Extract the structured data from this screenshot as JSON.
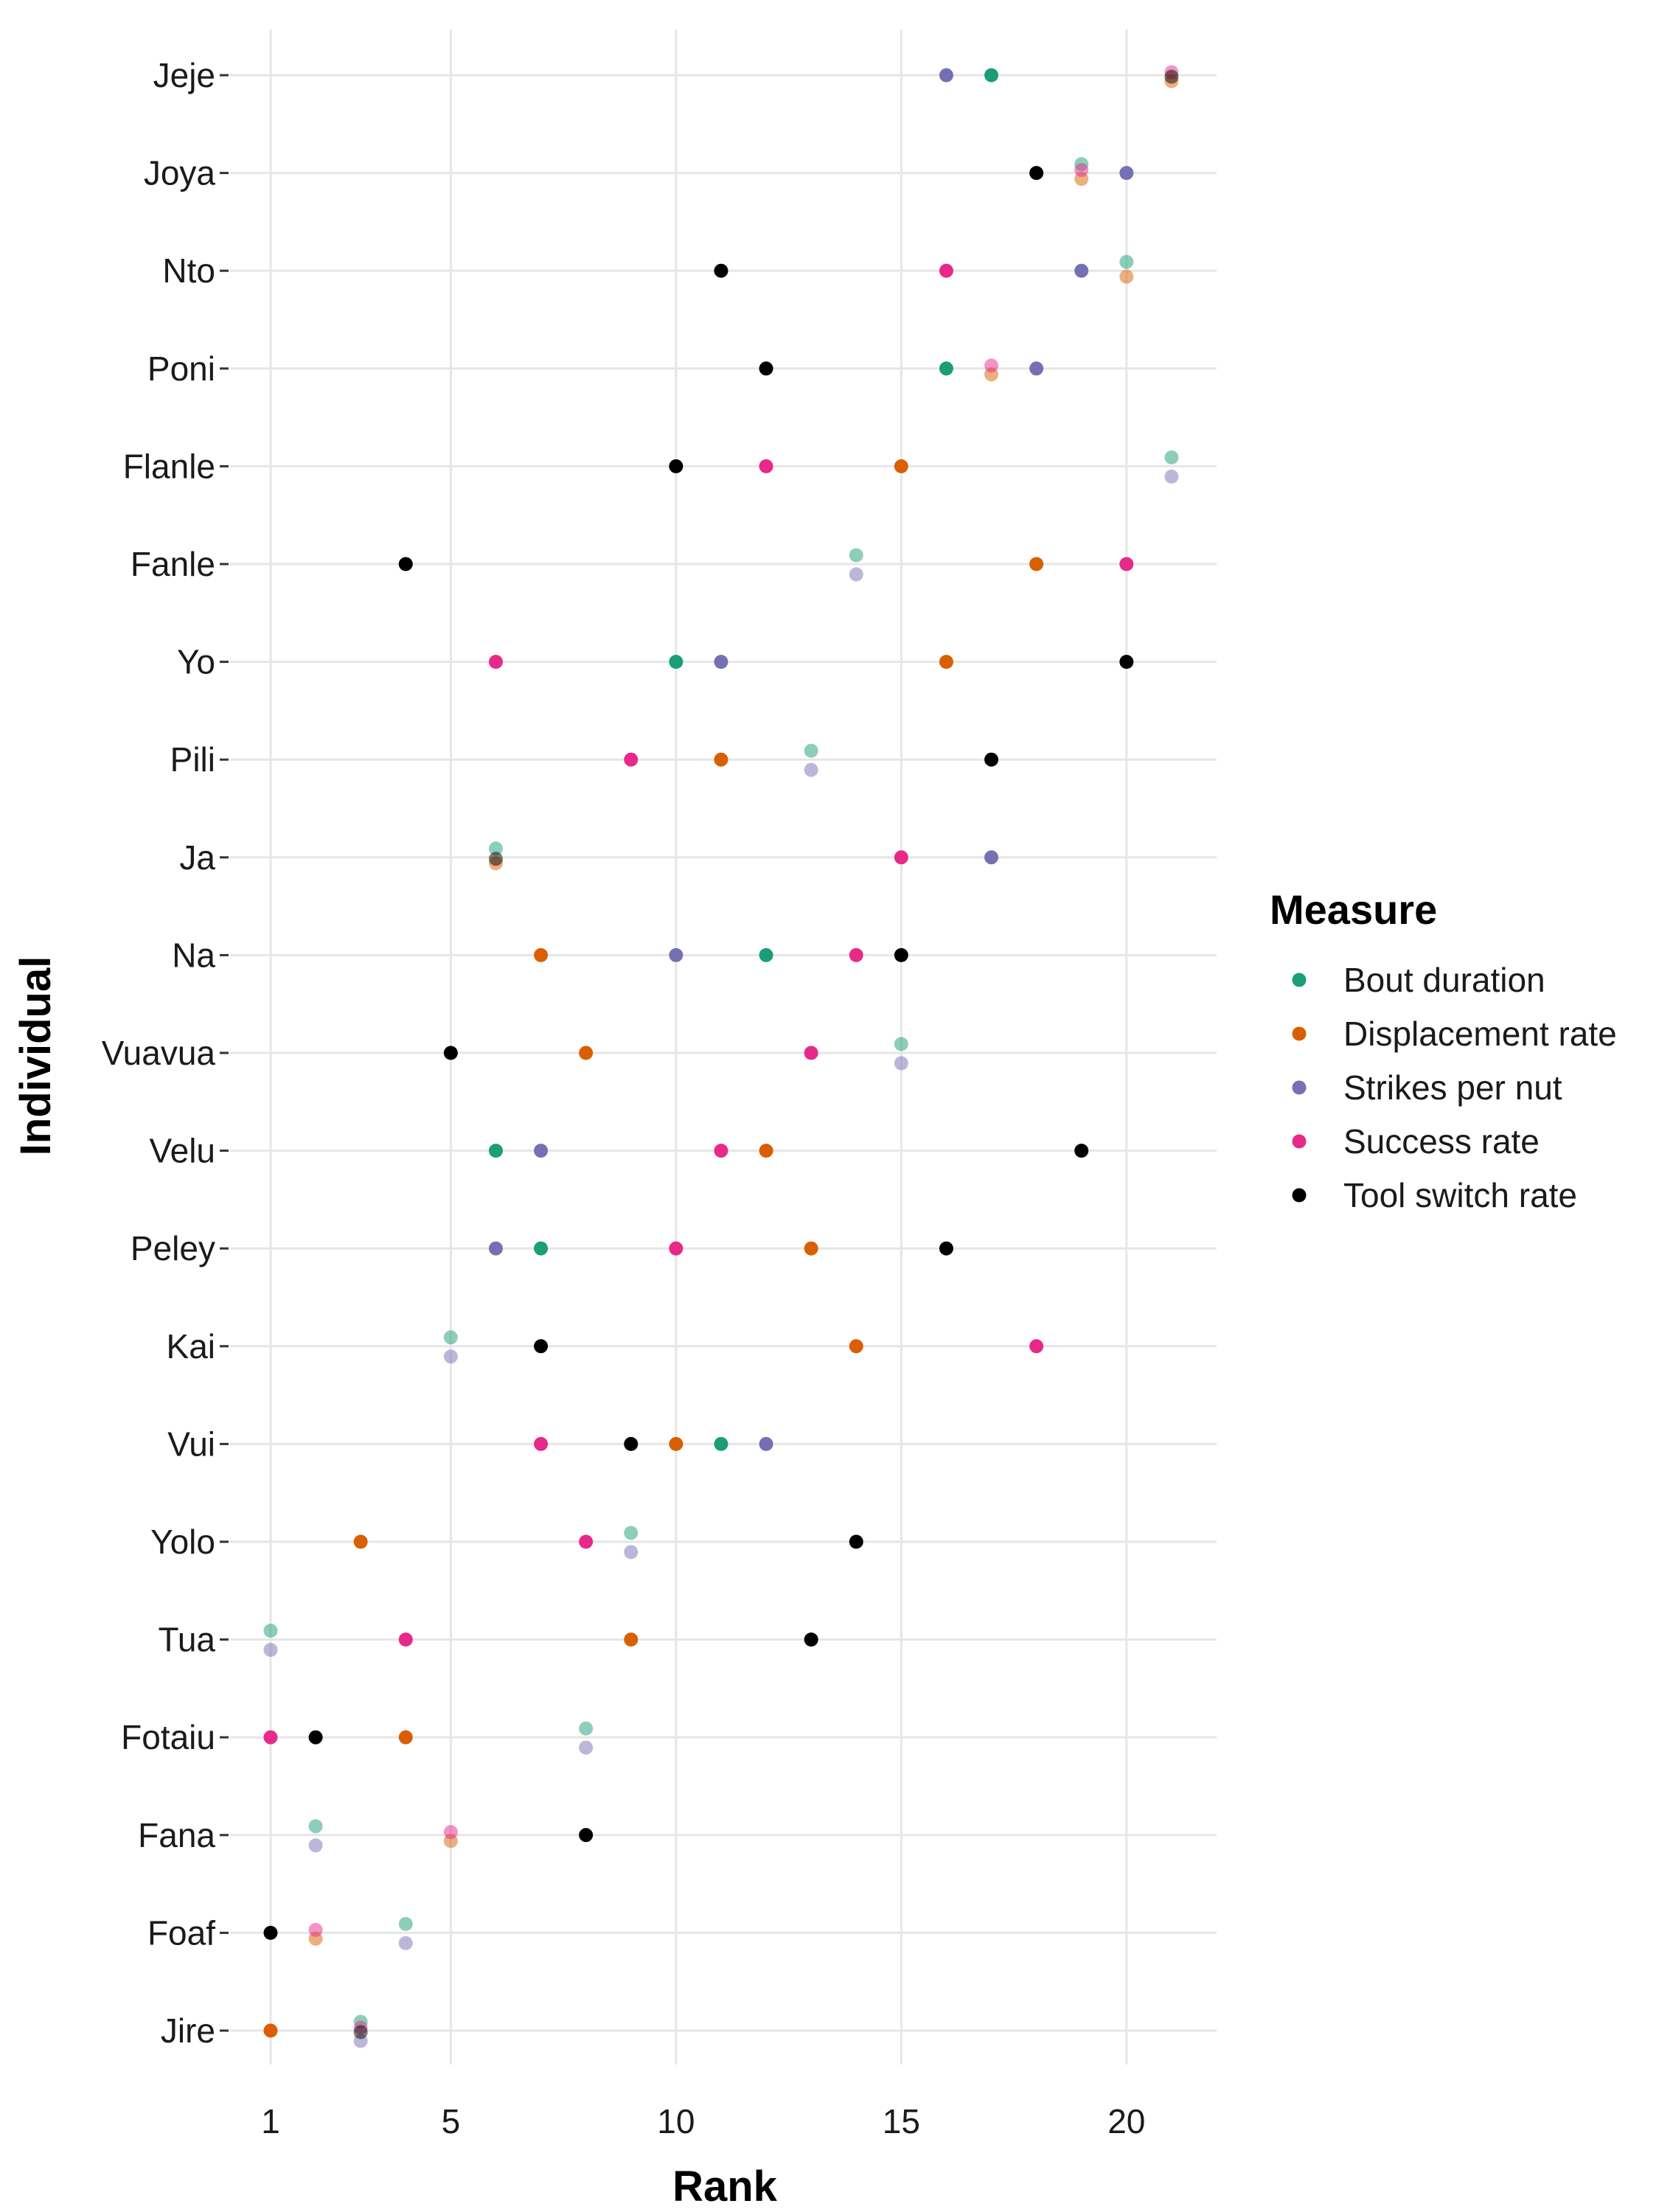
{
  "chart_data": {
    "type": "scatter",
    "title": "",
    "xlabel": "Rank",
    "ylabel": "Individual",
    "xlim": [
      0.1,
      22.0
    ],
    "x_ticks": [
      1,
      5,
      10,
      15,
      20
    ],
    "grid": true,
    "legend": {
      "title": "Measure",
      "placement": "right"
    },
    "categories": [
      "Jeje",
      "Joya",
      "Nto",
      "Poni",
      "Flanle",
      "Fanle",
      "Yo",
      "Pili",
      "Ja",
      "Na",
      "Vuavua",
      "Velu",
      "Peley",
      "Kai",
      "Vui",
      "Yolo",
      "Tua",
      "Fotaiu",
      "Fana",
      "Foaf",
      "Jire"
    ],
    "series": [
      {
        "name": "Bout duration",
        "color": "#1b9e77",
        "points": [
          {
            "individual": "Jeje",
            "rank": 17,
            "overlap": false
          },
          {
            "individual": "Joya",
            "rank": 19,
            "overlap": true
          },
          {
            "individual": "Nto",
            "rank": 20,
            "overlap": true
          },
          {
            "individual": "Poni",
            "rank": 16,
            "overlap": false
          },
          {
            "individual": "Flanle",
            "rank": 21,
            "overlap": true
          },
          {
            "individual": "Fanle",
            "rank": 14,
            "overlap": true
          },
          {
            "individual": "Yo",
            "rank": 10,
            "overlap": false
          },
          {
            "individual": "Pili",
            "rank": 13,
            "overlap": true
          },
          {
            "individual": "Ja",
            "rank": 6,
            "overlap": true
          },
          {
            "individual": "Na",
            "rank": 12,
            "overlap": false
          },
          {
            "individual": "Vuavua",
            "rank": 15,
            "overlap": true
          },
          {
            "individual": "Velu",
            "rank": 6,
            "overlap": false
          },
          {
            "individual": "Peley",
            "rank": 7,
            "overlap": false
          },
          {
            "individual": "Kai",
            "rank": 5,
            "overlap": true
          },
          {
            "individual": "Vui",
            "rank": 11,
            "overlap": false
          },
          {
            "individual": "Yolo",
            "rank": 9,
            "overlap": true
          },
          {
            "individual": "Tua",
            "rank": 1,
            "overlap": true
          },
          {
            "individual": "Fotaiu",
            "rank": 8,
            "overlap": true
          },
          {
            "individual": "Fana",
            "rank": 2,
            "overlap": true
          },
          {
            "individual": "Foaf",
            "rank": 4,
            "overlap": true
          },
          {
            "individual": "Jire",
            "rank": 3,
            "overlap": true
          }
        ]
      },
      {
        "name": "Displacement rate",
        "color": "#d95f02",
        "points": [
          {
            "individual": "Jeje",
            "rank": 21,
            "overlap": true
          },
          {
            "individual": "Joya",
            "rank": 19,
            "overlap": true
          },
          {
            "individual": "Nto",
            "rank": 20,
            "overlap": true
          },
          {
            "individual": "Poni",
            "rank": 17,
            "overlap": true
          },
          {
            "individual": "Flanle",
            "rank": 15,
            "overlap": false
          },
          {
            "individual": "Fanle",
            "rank": 18,
            "overlap": false
          },
          {
            "individual": "Yo",
            "rank": 16,
            "overlap": false
          },
          {
            "individual": "Pili",
            "rank": 11,
            "overlap": false
          },
          {
            "individual": "Ja",
            "rank": 6,
            "overlap": true
          },
          {
            "individual": "Na",
            "rank": 7,
            "overlap": false
          },
          {
            "individual": "Vuavua",
            "rank": 8,
            "overlap": false
          },
          {
            "individual": "Velu",
            "rank": 12,
            "overlap": false
          },
          {
            "individual": "Peley",
            "rank": 13,
            "overlap": false
          },
          {
            "individual": "Kai",
            "rank": 14,
            "overlap": false
          },
          {
            "individual": "Vui",
            "rank": 10,
            "overlap": false
          },
          {
            "individual": "Yolo",
            "rank": 3,
            "overlap": false
          },
          {
            "individual": "Tua",
            "rank": 9,
            "overlap": false
          },
          {
            "individual": "Fotaiu",
            "rank": 4,
            "overlap": false
          },
          {
            "individual": "Fana",
            "rank": 5,
            "overlap": true
          },
          {
            "individual": "Foaf",
            "rank": 2,
            "overlap": true
          },
          {
            "individual": "Jire",
            "rank": 1,
            "overlap": false
          }
        ]
      },
      {
        "name": "Strikes per nut",
        "color": "#7570b3",
        "points": [
          {
            "individual": "Jeje",
            "rank": 16,
            "overlap": false
          },
          {
            "individual": "Joya",
            "rank": 20,
            "overlap": false
          },
          {
            "individual": "Nto",
            "rank": 19,
            "overlap": false
          },
          {
            "individual": "Poni",
            "rank": 18,
            "overlap": false
          },
          {
            "individual": "Flanle",
            "rank": 21,
            "overlap": true
          },
          {
            "individual": "Fanle",
            "rank": 14,
            "overlap": true
          },
          {
            "individual": "Yo",
            "rank": 11,
            "overlap": false
          },
          {
            "individual": "Pili",
            "rank": 13,
            "overlap": true
          },
          {
            "individual": "Ja",
            "rank": 17,
            "overlap": false
          },
          {
            "individual": "Na",
            "rank": 10,
            "overlap": false
          },
          {
            "individual": "Vuavua",
            "rank": 15,
            "overlap": true
          },
          {
            "individual": "Velu",
            "rank": 7,
            "overlap": false
          },
          {
            "individual": "Peley",
            "rank": 6,
            "overlap": false
          },
          {
            "individual": "Kai",
            "rank": 5,
            "overlap": true
          },
          {
            "individual": "Vui",
            "rank": 12,
            "overlap": false
          },
          {
            "individual": "Yolo",
            "rank": 9,
            "overlap": true
          },
          {
            "individual": "Tua",
            "rank": 1,
            "overlap": true
          },
          {
            "individual": "Fotaiu",
            "rank": 8,
            "overlap": true
          },
          {
            "individual": "Fana",
            "rank": 2,
            "overlap": true
          },
          {
            "individual": "Foaf",
            "rank": 4,
            "overlap": true
          },
          {
            "individual": "Jire",
            "rank": 3,
            "overlap": true
          }
        ]
      },
      {
        "name": "Success rate",
        "color": "#e7298a",
        "points": [
          {
            "individual": "Jeje",
            "rank": 21,
            "overlap": true
          },
          {
            "individual": "Joya",
            "rank": 19,
            "overlap": true
          },
          {
            "individual": "Nto",
            "rank": 16,
            "overlap": false
          },
          {
            "individual": "Poni",
            "rank": 17,
            "overlap": true
          },
          {
            "individual": "Flanle",
            "rank": 12,
            "overlap": false
          },
          {
            "individual": "Fanle",
            "rank": 20,
            "overlap": false
          },
          {
            "individual": "Yo",
            "rank": 6,
            "overlap": false
          },
          {
            "individual": "Pili",
            "rank": 9,
            "overlap": false
          },
          {
            "individual": "Ja",
            "rank": 15,
            "overlap": false
          },
          {
            "individual": "Na",
            "rank": 14,
            "overlap": false
          },
          {
            "individual": "Vuavua",
            "rank": 13,
            "overlap": false
          },
          {
            "individual": "Velu",
            "rank": 11,
            "overlap": false
          },
          {
            "individual": "Peley",
            "rank": 10,
            "overlap": false
          },
          {
            "individual": "Kai",
            "rank": 18,
            "overlap": false
          },
          {
            "individual": "Vui",
            "rank": 7,
            "overlap": false
          },
          {
            "individual": "Yolo",
            "rank": 8,
            "overlap": false
          },
          {
            "individual": "Tua",
            "rank": 4,
            "overlap": false
          },
          {
            "individual": "Fotaiu",
            "rank": 1,
            "overlap": false
          },
          {
            "individual": "Fana",
            "rank": 5,
            "overlap": true
          },
          {
            "individual": "Foaf",
            "rank": 2,
            "overlap": true
          },
          {
            "individual": "Jire",
            "rank": 3,
            "overlap": true
          }
        ]
      },
      {
        "name": "Tool switch rate",
        "color": "#000000",
        "points": [
          {
            "individual": "Jeje",
            "rank": 21,
            "overlap": true
          },
          {
            "individual": "Joya",
            "rank": 18,
            "overlap": false
          },
          {
            "individual": "Nto",
            "rank": 11,
            "overlap": false
          },
          {
            "individual": "Poni",
            "rank": 12,
            "overlap": false
          },
          {
            "individual": "Flanle",
            "rank": 10,
            "overlap": false
          },
          {
            "individual": "Fanle",
            "rank": 4,
            "overlap": false
          },
          {
            "individual": "Yo",
            "rank": 20,
            "overlap": false
          },
          {
            "individual": "Pili",
            "rank": 17,
            "overlap": false
          },
          {
            "individual": "Ja",
            "rank": 6,
            "overlap": true
          },
          {
            "individual": "Na",
            "rank": 15,
            "overlap": false
          },
          {
            "individual": "Vuavua",
            "rank": 5,
            "overlap": false
          },
          {
            "individual": "Velu",
            "rank": 19,
            "overlap": false
          },
          {
            "individual": "Peley",
            "rank": 16,
            "overlap": false
          },
          {
            "individual": "Kai",
            "rank": 7,
            "overlap": false
          },
          {
            "individual": "Vui",
            "rank": 9,
            "overlap": false
          },
          {
            "individual": "Yolo",
            "rank": 14,
            "overlap": false
          },
          {
            "individual": "Tua",
            "rank": 13,
            "overlap": false
          },
          {
            "individual": "Fotaiu",
            "rank": 2,
            "overlap": false
          },
          {
            "individual": "Fana",
            "rank": 8,
            "overlap": false
          },
          {
            "individual": "Foaf",
            "rank": 1,
            "overlap": false
          },
          {
            "individual": "Jire",
            "rank": 3,
            "overlap": true
          }
        ]
      }
    ]
  }
}
